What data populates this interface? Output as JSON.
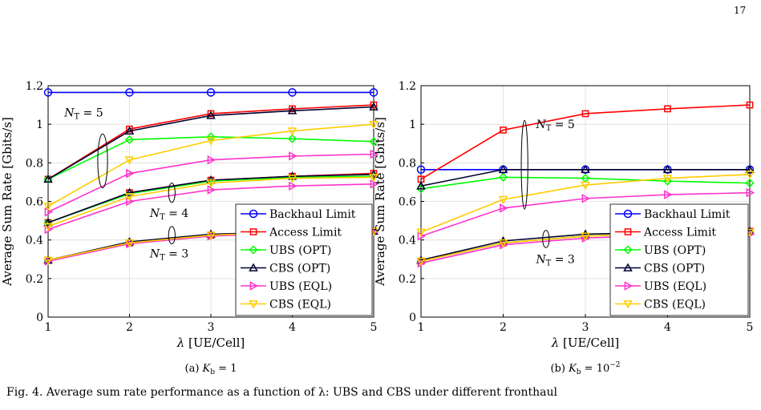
{
  "page_number": "17",
  "caption_fragment": "Fig. 4.  Average sum rate performance as a function of λ: UBS and CBS under different fronthaul",
  "legend": {
    "backhaul": "Backhaul Limit",
    "access": "Access Limit",
    "ubs_opt": "UBS (OPT)",
    "cbs_opt": "CBS (OPT)",
    "ubs_eql": "UBS (EQL)",
    "cbs_eql": "CBS (EQL)"
  },
  "colors": {
    "backhaul": "#0000ff",
    "access": "#ff0000",
    "ubs_opt": "#00ff00",
    "cbs_opt": "#000033",
    "ubs_eql": "#ff33cc",
    "cbs_eql": "#ffcc00"
  },
  "chart_data": [
    {
      "type": "line",
      "id": "a",
      "caption": "(a)  K_b = 1",
      "caption_label": "(a)",
      "caption_math": "K",
      "caption_sub": "b",
      "caption_rhs": " = 1",
      "xlabel_symbol": "λ",
      "xlabel": "[UE/Cell]",
      "ylabel": "Average Sum Rate [Gbits/s]",
      "xlim": [
        1,
        5
      ],
      "ylim": [
        0,
        1.2
      ],
      "xticks": [
        1,
        2,
        3,
        4,
        5
      ],
      "yticks": [
        0,
        0.2,
        0.4,
        0.6,
        0.8,
        1,
        1.2
      ],
      "ytick_labels": [
        "0",
        "0.2",
        "0.4",
        "0.6",
        "0.8",
        "1",
        "1.2"
      ],
      "grid": true,
      "legend_position": "bottom-right",
      "x": [
        1,
        2,
        3,
        4,
        5
      ],
      "annotations": [
        {
          "text": "N_T = 5",
          "sym": "N",
          "sub": "T",
          "rhs": " = 5",
          "x": 1.2,
          "y": 1.04
        },
        {
          "text": "N_T = 4",
          "sym": "N",
          "sub": "T",
          "rhs": " = 4",
          "x": 2.25,
          "y": 0.52
        },
        {
          "text": "N_T = 3",
          "sym": "N",
          "sub": "T",
          "rhs": " = 3",
          "x": 2.25,
          "y": 0.31
        }
      ],
      "ellipses": [
        {
          "x": 1.67,
          "y": 0.81,
          "rx": 0.06,
          "ry": 0.14
        },
        {
          "x": 2.52,
          "y": 0.645,
          "rx": 0.04,
          "ry": 0.05
        },
        {
          "x": 2.52,
          "y": 0.425,
          "rx": 0.04,
          "ry": 0.045
        }
      ],
      "series": [
        {
          "key": "backhaul",
          "marker": "circle",
          "values": [
            1.165,
            1.165,
            1.165,
            1.165,
            1.165
          ]
        },
        {
          "key": "access",
          "marker": "square",
          "values": [
            0.715,
            0.975,
            1.055,
            1.08,
            1.1
          ]
        },
        {
          "key": "ubs_opt",
          "marker": "diamond",
          "values": [
            0.715,
            0.92,
            0.935,
            0.925,
            0.91
          ]
        },
        {
          "key": "cbs_opt",
          "marker": "triangle",
          "values": [
            0.715,
            0.965,
            1.045,
            1.07,
            1.09
          ]
        },
        {
          "key": "ubs_eql",
          "marker": "triangle-right",
          "values": [
            0.545,
            0.745,
            0.815,
            0.835,
            0.845
          ]
        },
        {
          "key": "cbs_eql",
          "marker": "triangle-down",
          "values": [
            0.575,
            0.815,
            0.915,
            0.965,
            1.0
          ]
        },
        {
          "key": "access",
          "marker": "square",
          "values": [
            0.49,
            0.645,
            0.71,
            0.73,
            0.745
          ]
        },
        {
          "key": "ubs_opt",
          "marker": "diamond",
          "values": [
            0.49,
            0.64,
            0.705,
            0.725,
            0.73
          ]
        },
        {
          "key": "cbs_opt",
          "marker": "triangle",
          "values": [
            0.49,
            0.645,
            0.71,
            0.73,
            0.74
          ]
        },
        {
          "key": "ubs_eql",
          "marker": "triangle-right",
          "values": [
            0.455,
            0.6,
            0.66,
            0.68,
            0.69
          ]
        },
        {
          "key": "cbs_eql",
          "marker": "triangle-down",
          "values": [
            0.47,
            0.625,
            0.695,
            0.72,
            0.725
          ]
        },
        {
          "key": "access",
          "marker": "square",
          "values": [
            0.295,
            0.385,
            0.425,
            0.44,
            0.445
          ]
        },
        {
          "key": "ubs_opt",
          "marker": "diamond",
          "values": [
            0.295,
            0.385,
            0.425,
            0.44,
            0.445
          ]
        },
        {
          "key": "cbs_opt",
          "marker": "triangle",
          "values": [
            0.295,
            0.39,
            0.43,
            0.44,
            0.445
          ]
        },
        {
          "key": "ubs_eql",
          "marker": "triangle-right",
          "values": [
            0.29,
            0.38,
            0.42,
            0.435,
            0.44
          ]
        },
        {
          "key": "cbs_eql",
          "marker": "triangle-down",
          "values": [
            0.295,
            0.385,
            0.425,
            0.44,
            0.445
          ]
        }
      ]
    },
    {
      "type": "line",
      "id": "b",
      "caption": "(b)  K_b = 10^-2",
      "caption_label": "(b)",
      "caption_math": "K",
      "caption_sub": "b",
      "caption_rhs": " = 10",
      "caption_sup": "−2",
      "xlabel_symbol": "λ",
      "xlabel": "[UE/Cell]",
      "ylabel": "Average Sum Rate [Gbits/s]",
      "xlim": [
        1,
        5
      ],
      "ylim": [
        0,
        1.2
      ],
      "xticks": [
        1,
        2,
        3,
        4,
        5
      ],
      "yticks": [
        0,
        0.2,
        0.4,
        0.6,
        0.8,
        1,
        1.2
      ],
      "ytick_labels": [
        "0",
        "0.2",
        "0.4",
        "0.6",
        "0.8",
        "1",
        "1.2"
      ],
      "grid": true,
      "legend_position": "bottom-right",
      "x": [
        1,
        2,
        3,
        4,
        5
      ],
      "annotations": [
        {
          "text": "N_T = 5",
          "sym": "N",
          "sub": "T",
          "rhs": " = 5",
          "x": 2.4,
          "y": 0.98
        },
        {
          "text": "N_T = 3",
          "sym": "N",
          "sub": "T",
          "rhs": " = 3",
          "x": 2.4,
          "y": 0.28
        }
      ],
      "ellipses": [
        {
          "x": 2.26,
          "y": 0.79,
          "rx": 0.04,
          "ry": 0.23
        },
        {
          "x": 2.52,
          "y": 0.405,
          "rx": 0.04,
          "ry": 0.045
        }
      ],
      "series": [
        {
          "key": "backhaul",
          "marker": "circle",
          "values": [
            0.765,
            0.765,
            0.765,
            0.765,
            0.765
          ]
        },
        {
          "key": "access",
          "marker": "square",
          "values": [
            0.715,
            0.97,
            1.055,
            1.08,
            1.1
          ]
        },
        {
          "key": "ubs_opt",
          "marker": "diamond",
          "values": [
            0.665,
            0.725,
            0.72,
            0.705,
            0.695
          ]
        },
        {
          "key": "cbs_opt",
          "marker": "triangle",
          "values": [
            0.68,
            0.765,
            0.765,
            0.765,
            0.765
          ]
        },
        {
          "key": "ubs_eql",
          "marker": "triangle-right",
          "values": [
            0.42,
            0.565,
            0.615,
            0.635,
            0.645
          ]
        },
        {
          "key": "cbs_eql",
          "marker": "triangle-down",
          "values": [
            0.44,
            0.61,
            0.685,
            0.72,
            0.74
          ]
        },
        {
          "key": "access",
          "marker": "square",
          "values": [
            0.29,
            0.385,
            0.42,
            0.435,
            0.445
          ]
        },
        {
          "key": "ubs_opt",
          "marker": "diamond",
          "values": [
            0.29,
            0.385,
            0.42,
            0.435,
            0.44
          ]
        },
        {
          "key": "cbs_opt",
          "marker": "triangle",
          "values": [
            0.295,
            0.395,
            0.43,
            0.44,
            0.445
          ]
        },
        {
          "key": "ubs_eql",
          "marker": "triangle-right",
          "values": [
            0.28,
            0.375,
            0.41,
            0.425,
            0.43
          ]
        },
        {
          "key": "cbs_eql",
          "marker": "triangle-down",
          "values": [
            0.29,
            0.385,
            0.42,
            0.435,
            0.44
          ]
        }
      ]
    }
  ]
}
